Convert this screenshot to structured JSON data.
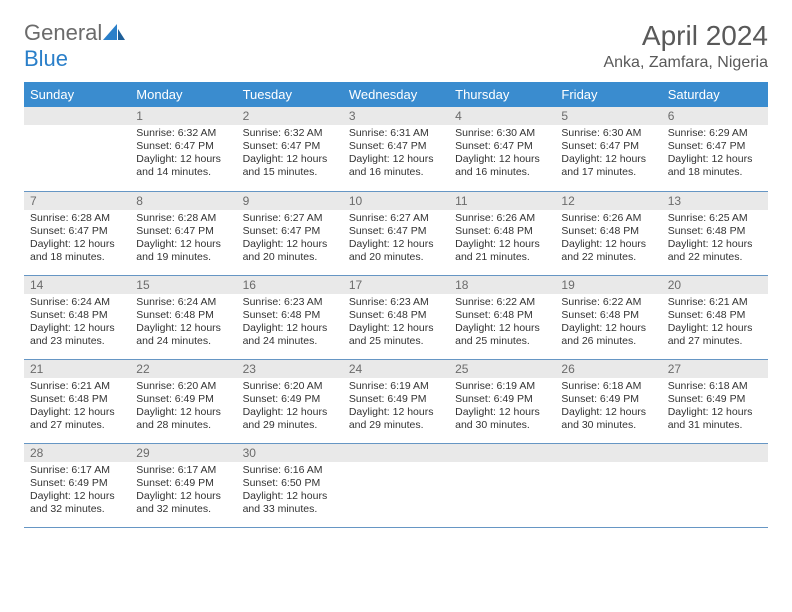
{
  "brand": {
    "part1": "General",
    "part2": "Blue"
  },
  "title": "April 2024",
  "location": "Anka, Zamfara, Nigeria",
  "colors": {
    "header_bg": "#3a8ccf",
    "header_text": "#ffffff",
    "daynum_bg": "#e9e9e9",
    "border": "#6696c4",
    "title_color": "#595959",
    "brand_gray": "#6b6b6b",
    "brand_blue": "#2a7fc9"
  },
  "weekdays": [
    "Sunday",
    "Monday",
    "Tuesday",
    "Wednesday",
    "Thursday",
    "Friday",
    "Saturday"
  ],
  "weeks": [
    [
      null,
      {
        "n": "1",
        "sr": "Sunrise: 6:32 AM",
        "ss": "Sunset: 6:47 PM",
        "dl": "Daylight: 12 hours and 14 minutes."
      },
      {
        "n": "2",
        "sr": "Sunrise: 6:32 AM",
        "ss": "Sunset: 6:47 PM",
        "dl": "Daylight: 12 hours and 15 minutes."
      },
      {
        "n": "3",
        "sr": "Sunrise: 6:31 AM",
        "ss": "Sunset: 6:47 PM",
        "dl": "Daylight: 12 hours and 16 minutes."
      },
      {
        "n": "4",
        "sr": "Sunrise: 6:30 AM",
        "ss": "Sunset: 6:47 PM",
        "dl": "Daylight: 12 hours and 16 minutes."
      },
      {
        "n": "5",
        "sr": "Sunrise: 6:30 AM",
        "ss": "Sunset: 6:47 PM",
        "dl": "Daylight: 12 hours and 17 minutes."
      },
      {
        "n": "6",
        "sr": "Sunrise: 6:29 AM",
        "ss": "Sunset: 6:47 PM",
        "dl": "Daylight: 12 hours and 18 minutes."
      }
    ],
    [
      {
        "n": "7",
        "sr": "Sunrise: 6:28 AM",
        "ss": "Sunset: 6:47 PM",
        "dl": "Daylight: 12 hours and 18 minutes."
      },
      {
        "n": "8",
        "sr": "Sunrise: 6:28 AM",
        "ss": "Sunset: 6:47 PM",
        "dl": "Daylight: 12 hours and 19 minutes."
      },
      {
        "n": "9",
        "sr": "Sunrise: 6:27 AM",
        "ss": "Sunset: 6:47 PM",
        "dl": "Daylight: 12 hours and 20 minutes."
      },
      {
        "n": "10",
        "sr": "Sunrise: 6:27 AM",
        "ss": "Sunset: 6:47 PM",
        "dl": "Daylight: 12 hours and 20 minutes."
      },
      {
        "n": "11",
        "sr": "Sunrise: 6:26 AM",
        "ss": "Sunset: 6:48 PM",
        "dl": "Daylight: 12 hours and 21 minutes."
      },
      {
        "n": "12",
        "sr": "Sunrise: 6:26 AM",
        "ss": "Sunset: 6:48 PM",
        "dl": "Daylight: 12 hours and 22 minutes."
      },
      {
        "n": "13",
        "sr": "Sunrise: 6:25 AM",
        "ss": "Sunset: 6:48 PM",
        "dl": "Daylight: 12 hours and 22 minutes."
      }
    ],
    [
      {
        "n": "14",
        "sr": "Sunrise: 6:24 AM",
        "ss": "Sunset: 6:48 PM",
        "dl": "Daylight: 12 hours and 23 minutes."
      },
      {
        "n": "15",
        "sr": "Sunrise: 6:24 AM",
        "ss": "Sunset: 6:48 PM",
        "dl": "Daylight: 12 hours and 24 minutes."
      },
      {
        "n": "16",
        "sr": "Sunrise: 6:23 AM",
        "ss": "Sunset: 6:48 PM",
        "dl": "Daylight: 12 hours and 24 minutes."
      },
      {
        "n": "17",
        "sr": "Sunrise: 6:23 AM",
        "ss": "Sunset: 6:48 PM",
        "dl": "Daylight: 12 hours and 25 minutes."
      },
      {
        "n": "18",
        "sr": "Sunrise: 6:22 AM",
        "ss": "Sunset: 6:48 PM",
        "dl": "Daylight: 12 hours and 25 minutes."
      },
      {
        "n": "19",
        "sr": "Sunrise: 6:22 AM",
        "ss": "Sunset: 6:48 PM",
        "dl": "Daylight: 12 hours and 26 minutes."
      },
      {
        "n": "20",
        "sr": "Sunrise: 6:21 AM",
        "ss": "Sunset: 6:48 PM",
        "dl": "Daylight: 12 hours and 27 minutes."
      }
    ],
    [
      {
        "n": "21",
        "sr": "Sunrise: 6:21 AM",
        "ss": "Sunset: 6:48 PM",
        "dl": "Daylight: 12 hours and 27 minutes."
      },
      {
        "n": "22",
        "sr": "Sunrise: 6:20 AM",
        "ss": "Sunset: 6:49 PM",
        "dl": "Daylight: 12 hours and 28 minutes."
      },
      {
        "n": "23",
        "sr": "Sunrise: 6:20 AM",
        "ss": "Sunset: 6:49 PM",
        "dl": "Daylight: 12 hours and 29 minutes."
      },
      {
        "n": "24",
        "sr": "Sunrise: 6:19 AM",
        "ss": "Sunset: 6:49 PM",
        "dl": "Daylight: 12 hours and 29 minutes."
      },
      {
        "n": "25",
        "sr": "Sunrise: 6:19 AM",
        "ss": "Sunset: 6:49 PM",
        "dl": "Daylight: 12 hours and 30 minutes."
      },
      {
        "n": "26",
        "sr": "Sunrise: 6:18 AM",
        "ss": "Sunset: 6:49 PM",
        "dl": "Daylight: 12 hours and 30 minutes."
      },
      {
        "n": "27",
        "sr": "Sunrise: 6:18 AM",
        "ss": "Sunset: 6:49 PM",
        "dl": "Daylight: 12 hours and 31 minutes."
      }
    ],
    [
      {
        "n": "28",
        "sr": "Sunrise: 6:17 AM",
        "ss": "Sunset: 6:49 PM",
        "dl": "Daylight: 12 hours and 32 minutes."
      },
      {
        "n": "29",
        "sr": "Sunrise: 6:17 AM",
        "ss": "Sunset: 6:49 PM",
        "dl": "Daylight: 12 hours and 32 minutes."
      },
      {
        "n": "30",
        "sr": "Sunrise: 6:16 AM",
        "ss": "Sunset: 6:50 PM",
        "dl": "Daylight: 12 hours and 33 minutes."
      },
      null,
      null,
      null,
      null
    ]
  ]
}
